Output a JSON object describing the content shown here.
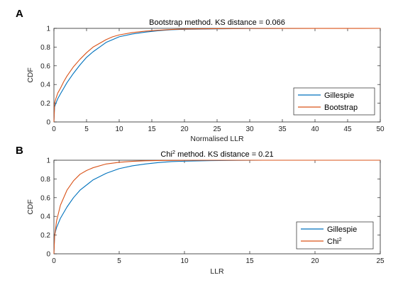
{
  "chart_data": [
    {
      "type": "line",
      "panel_label": "A",
      "title": "Bootstrap method. KS distance = 0.066",
      "xlabel": "Normalised LLR",
      "ylabel": "CDF",
      "xlim": [
        0,
        50
      ],
      "ylim": [
        0,
        1
      ],
      "xticks": [
        "0",
        "5",
        "10",
        "15",
        "20",
        "25",
        "30",
        "35",
        "40",
        "45",
        "50"
      ],
      "yticks": [
        "0",
        "0.2",
        "0.4",
        "0.6",
        "0.8",
        "1"
      ],
      "legend_position": "bottom-right",
      "series": [
        {
          "name": "Gillespie",
          "color": "#0072BD",
          "x": [
            0,
            0.1,
            0.3,
            0.6,
            1,
            1.5,
            2,
            3,
            4,
            5,
            6,
            7,
            8,
            9,
            10,
            12,
            14,
            16,
            18,
            20,
            25,
            30,
            35,
            40,
            48
          ],
          "y": [
            0,
            0.16,
            0.2,
            0.25,
            0.3,
            0.36,
            0.42,
            0.52,
            0.61,
            0.69,
            0.75,
            0.8,
            0.85,
            0.88,
            0.91,
            0.94,
            0.96,
            0.975,
            0.985,
            0.99,
            0.995,
            0.998,
            0.999,
            1.0,
            1.0
          ]
        },
        {
          "name": "Bootstrap",
          "color": "#D95319",
          "x": [
            0,
            0.1,
            0.3,
            0.6,
            1,
            1.5,
            2,
            3,
            4,
            5,
            6,
            7,
            8,
            9,
            10,
            12,
            14,
            16,
            18,
            20,
            25,
            30,
            50
          ],
          "y": [
            0,
            0.2,
            0.25,
            0.31,
            0.36,
            0.43,
            0.49,
            0.59,
            0.67,
            0.74,
            0.8,
            0.84,
            0.88,
            0.91,
            0.93,
            0.955,
            0.97,
            0.98,
            0.988,
            0.993,
            0.997,
            0.999,
            1.0
          ]
        }
      ]
    },
    {
      "type": "line",
      "panel_label": "B",
      "title_prefix": "Chi",
      "title_sup": "2",
      "title_suffix": " method. KS distance = 0.21",
      "xlabel": "LLR",
      "ylabel": "CDF",
      "xlim": [
        0,
        25
      ],
      "ylim": [
        0,
        1
      ],
      "xticks": [
        "0",
        "5",
        "10",
        "15",
        "20",
        "25"
      ],
      "yticks": [
        "0",
        "0.2",
        "0.4",
        "0.6",
        "0.8",
        "1"
      ],
      "legend_position": "bottom-right",
      "series": [
        {
          "name": "Gillespie",
          "color": "#0072BD",
          "x": [
            0,
            0.05,
            0.2,
            0.5,
            1,
            1.5,
            2,
            3,
            4,
            5,
            6,
            7,
            8,
            9,
            10,
            12,
            14,
            16,
            20,
            25
          ],
          "y": [
            0,
            0.2,
            0.28,
            0.38,
            0.5,
            0.6,
            0.68,
            0.79,
            0.86,
            0.91,
            0.94,
            0.96,
            0.975,
            0.985,
            0.99,
            0.996,
            0.998,
            1.0,
            1.0,
            1.0
          ]
        },
        {
          "name": "Chi",
          "name_sup": "2",
          "color": "#D95319",
          "x": [
            0,
            0.05,
            0.2,
            0.5,
            1,
            1.5,
            2,
            2.5,
            3,
            4,
            5,
            6,
            7,
            8,
            10,
            12,
            25
          ],
          "y": [
            0,
            0.18,
            0.35,
            0.52,
            0.68,
            0.78,
            0.85,
            0.89,
            0.92,
            0.96,
            0.978,
            0.988,
            0.994,
            0.997,
            0.999,
            1.0,
            1.0
          ]
        }
      ]
    }
  ]
}
